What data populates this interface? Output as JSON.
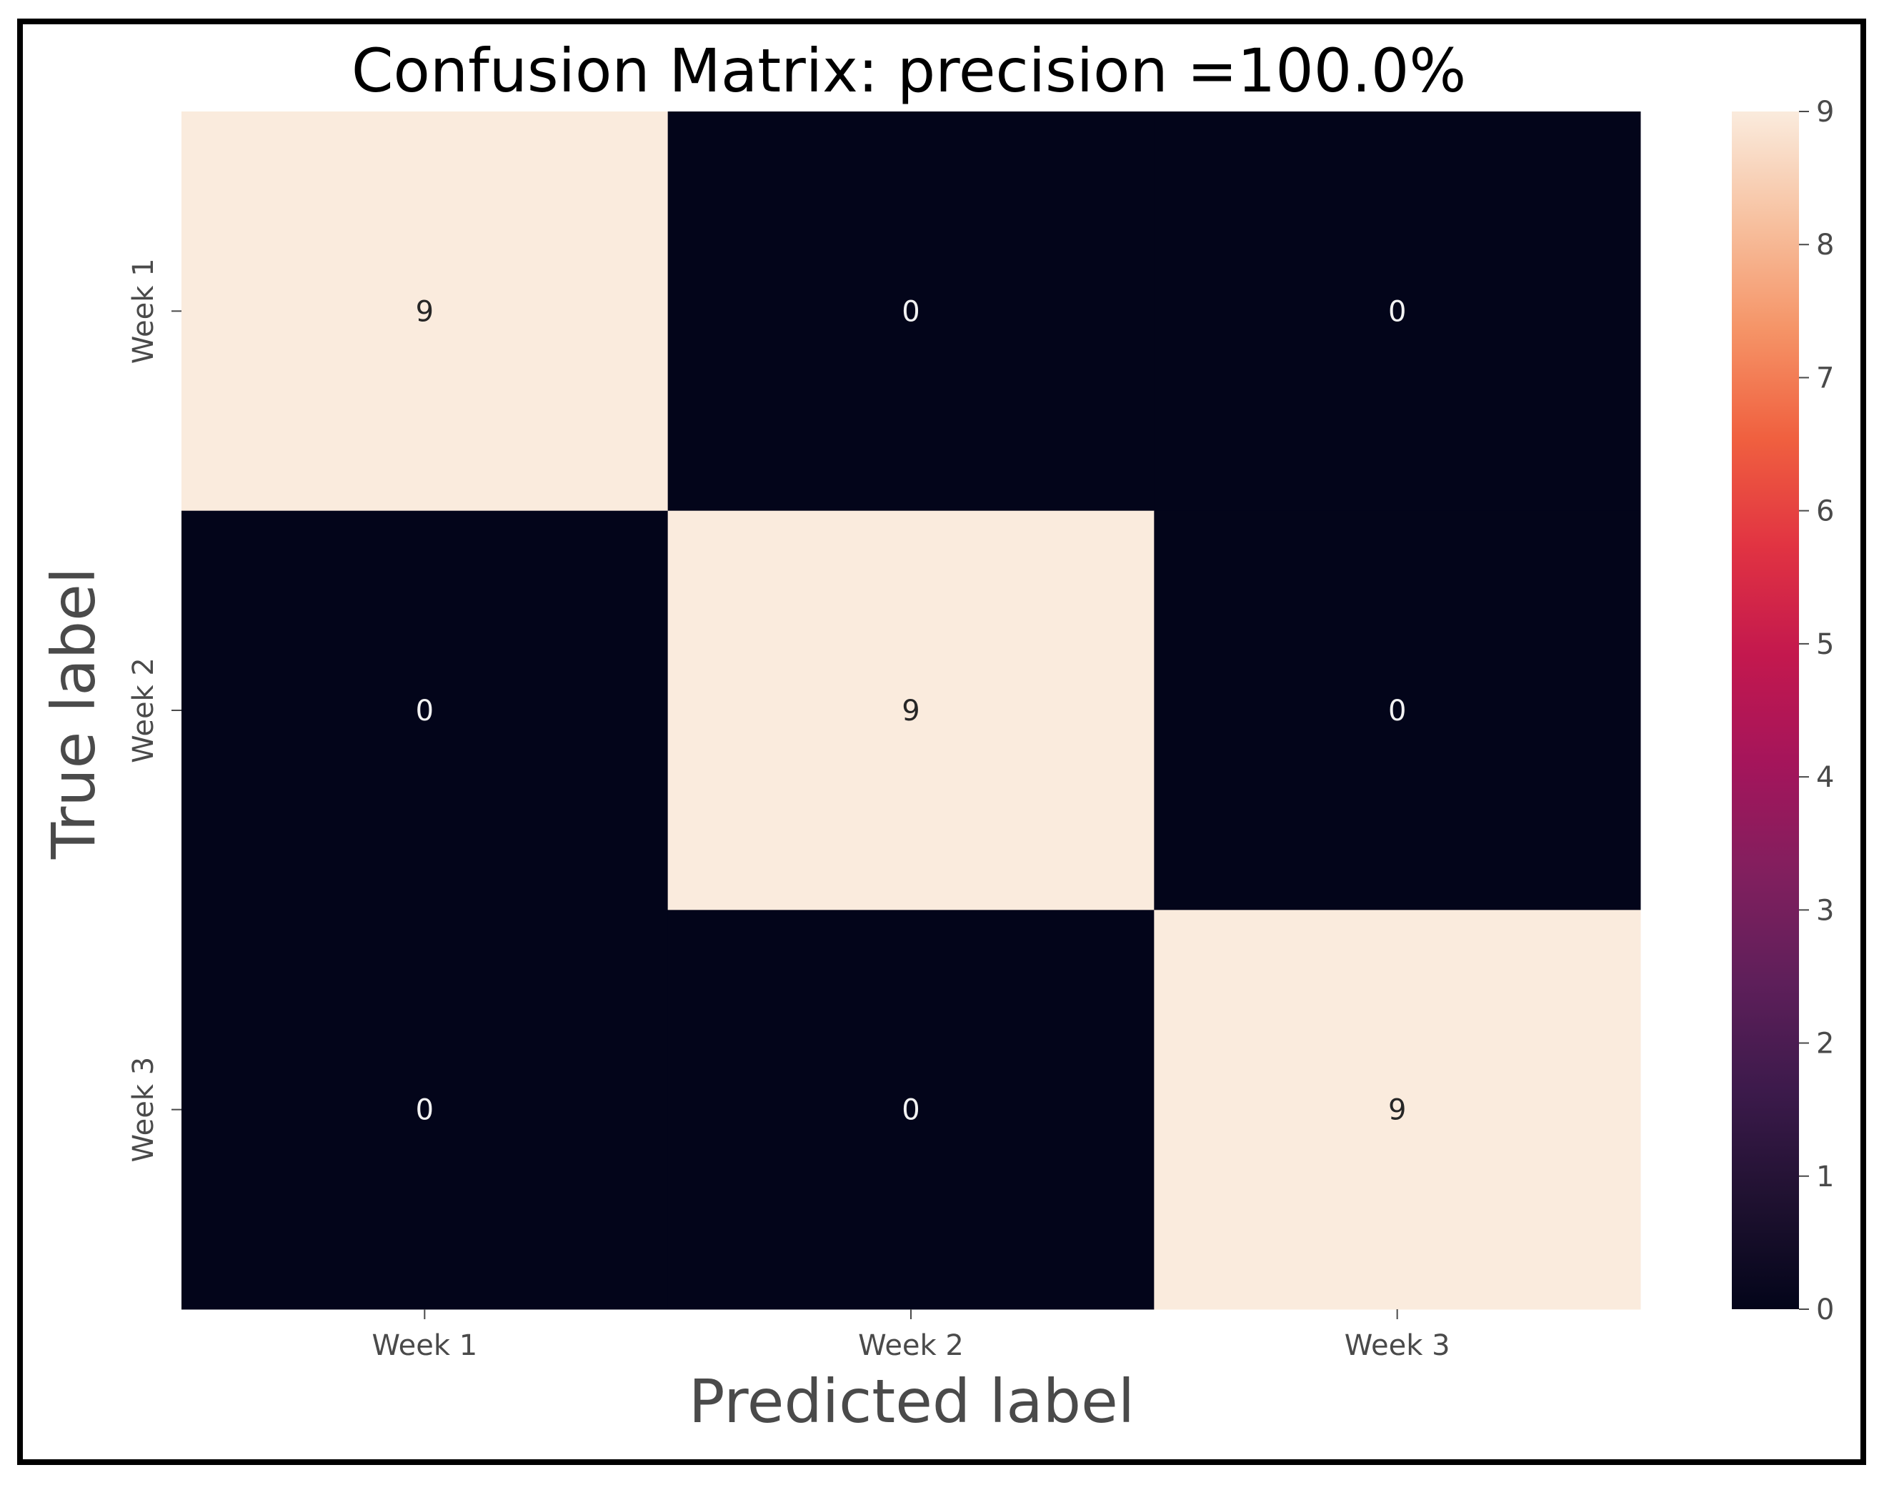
{
  "chart_data": {
    "type": "heatmap",
    "title": "Confusion Matrix: precision =100.0%",
    "xlabel": "Predicted label",
    "ylabel": "True label",
    "x_categories": [
      "Week 1",
      "Week 2",
      "Week 3"
    ],
    "y_categories": [
      "Week 1",
      "Week 2",
      "Week 3"
    ],
    "values": [
      [
        9,
        0,
        0
      ],
      [
        0,
        9,
        0
      ],
      [
        0,
        0,
        9
      ]
    ],
    "colorbar": {
      "range": [
        0,
        9
      ],
      "ticks": [
        "0",
        "1",
        "2",
        "3",
        "4",
        "5",
        "6",
        "7",
        "8",
        "9"
      ],
      "colormap": "rocket",
      "colors": [
        "#03051a",
        "#1f1130",
        "#3c1a4b",
        "#5e1f5a",
        "#811f5e",
        "#a4155b",
        "#c3184e",
        "#e13342",
        "#f0603f",
        "#f59467",
        "#f7c1a0",
        "#faebdd"
      ]
    },
    "grid": false,
    "legend": "colorbar-right"
  }
}
